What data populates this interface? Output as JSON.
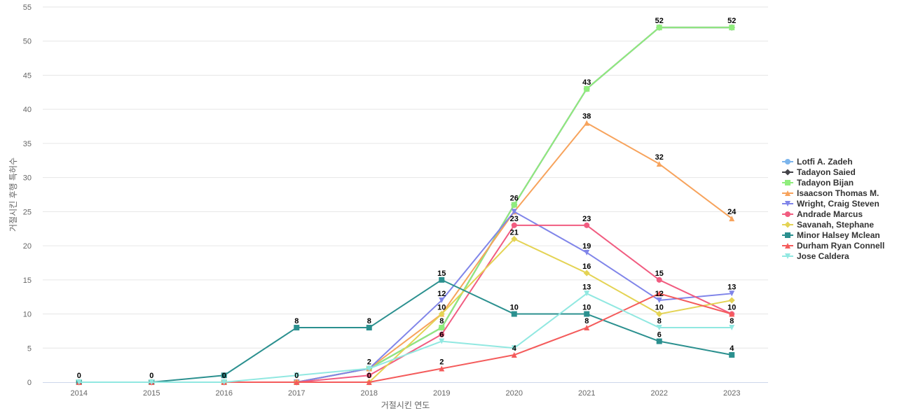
{
  "chart_data": {
    "type": "line",
    "title": "",
    "xlabel": "거절시킨 연도",
    "ylabel": "거절시킨 후행 특허수",
    "x": [
      "2014",
      "2015",
      "2016",
      "2017",
      "2018",
      "2019",
      "2020",
      "2021",
      "2022",
      "2023"
    ],
    "ylim": [
      0,
      55
    ],
    "yticks": [
      0,
      5,
      10,
      15,
      20,
      25,
      30,
      35,
      40,
      45,
      50,
      55
    ],
    "grid": "horizontal",
    "legend_position": "right",
    "series": [
      {
        "name": "Lotfi A. Zadeh",
        "color": "#7cb5ec",
        "marker": "circle",
        "values": [
          0,
          0,
          0,
          0,
          2,
          8,
          26,
          43,
          52,
          52
        ]
      },
      {
        "name": "Tadayon Saied",
        "color": "#434348",
        "marker": "diamond",
        "values": [
          0,
          0,
          0,
          0,
          2,
          8,
          26,
          43,
          52,
          52
        ]
      },
      {
        "name": "Tadayon Bijan",
        "color": "#90ed7d",
        "marker": "square",
        "values": [
          0,
          0,
          0,
          0,
          2,
          8,
          26,
          43,
          52,
          52
        ]
      },
      {
        "name": "Isaacson Thomas M.",
        "color": "#f7a35c",
        "marker": "triangle",
        "values": [
          0,
          0,
          0,
          0,
          2,
          10,
          25,
          38,
          32,
          24
        ]
      },
      {
        "name": "Wright, Craig Steven",
        "color": "#8085e9",
        "marker": "triangle-down",
        "values": [
          0,
          0,
          0,
          0,
          2,
          12,
          25,
          19,
          12,
          13
        ]
      },
      {
        "name": "Andrade Marcus",
        "color": "#f15c80",
        "marker": "circle",
        "values": [
          0,
          0,
          0,
          0,
          1,
          7,
          23,
          23,
          15,
          10
        ]
      },
      {
        "name": "Savanah, Stephane",
        "color": "#e4d354",
        "marker": "diamond",
        "values": [
          0,
          0,
          0,
          0,
          0,
          10,
          21,
          16,
          10,
          12
        ]
      },
      {
        "name": "Minor Halsey Mclean",
        "color": "#2b908f",
        "marker": "square",
        "values": [
          0,
          0,
          1,
          8,
          8,
          15,
          10,
          10,
          6,
          4
        ]
      },
      {
        "name": "Durham Ryan Connell",
        "color": "#f45b5b",
        "marker": "triangle",
        "values": [
          0,
          0,
          0,
          0,
          0,
          2,
          4,
          8,
          13,
          10
        ]
      },
      {
        "name": "Jose Caldera",
        "color": "#91e8e1",
        "marker": "triangle-down",
        "values": [
          0,
          0,
          0,
          1,
          2,
          6,
          5,
          13,
          8,
          8
        ]
      }
    ],
    "data_labels": [
      {
        "x": "2014",
        "y": 0,
        "text": "0"
      },
      {
        "x": "2015",
        "y": 0,
        "text": "0"
      },
      {
        "x": "2016",
        "y": 0,
        "text": "0"
      },
      {
        "x": "2017",
        "y": 8,
        "text": "8"
      },
      {
        "x": "2017",
        "y": 0,
        "text": "0"
      },
      {
        "x": "2018",
        "y": 8,
        "text": "8"
      },
      {
        "x": "2018",
        "y": 2,
        "text": "2"
      },
      {
        "x": "2018",
        "y": 0,
        "text": "0"
      },
      {
        "x": "2019",
        "y": 15,
        "text": "15"
      },
      {
        "x": "2019",
        "y": 12,
        "text": "12"
      },
      {
        "x": "2019",
        "y": 10,
        "text": "10"
      },
      {
        "x": "2019",
        "y": 8,
        "text": "8"
      },
      {
        "x": "2019",
        "y": 6,
        "text": "6"
      },
      {
        "x": "2019",
        "y": 2,
        "text": "2"
      },
      {
        "x": "2020",
        "y": 26,
        "text": "26"
      },
      {
        "x": "2020",
        "y": 23,
        "text": "23"
      },
      {
        "x": "2020",
        "y": 21,
        "text": "21"
      },
      {
        "x": "2020",
        "y": 10,
        "text": "10"
      },
      {
        "x": "2020",
        "y": 4,
        "text": "4"
      },
      {
        "x": "2021",
        "y": 43,
        "text": "43"
      },
      {
        "x": "2021",
        "y": 38,
        "text": "38"
      },
      {
        "x": "2021",
        "y": 23,
        "text": "23"
      },
      {
        "x": "2021",
        "y": 19,
        "text": "19"
      },
      {
        "x": "2021",
        "y": 16,
        "text": "16"
      },
      {
        "x": "2021",
        "y": 13,
        "text": "13"
      },
      {
        "x": "2021",
        "y": 10,
        "text": "10"
      },
      {
        "x": "2021",
        "y": 8,
        "text": "8"
      },
      {
        "x": "2022",
        "y": 52,
        "text": "52"
      },
      {
        "x": "2022",
        "y": 32,
        "text": "32"
      },
      {
        "x": "2022",
        "y": 15,
        "text": "15"
      },
      {
        "x": "2022",
        "y": 12,
        "text": "12"
      },
      {
        "x": "2022",
        "y": 10,
        "text": "10"
      },
      {
        "x": "2022",
        "y": 8,
        "text": "8"
      },
      {
        "x": "2022",
        "y": 6,
        "text": "6"
      },
      {
        "x": "2023",
        "y": 52,
        "text": "52"
      },
      {
        "x": "2023",
        "y": 24,
        "text": "24"
      },
      {
        "x": "2023",
        "y": 13,
        "text": "13"
      },
      {
        "x": "2023",
        "y": 10,
        "text": "10"
      },
      {
        "x": "2023",
        "y": 8,
        "text": "8"
      },
      {
        "x": "2023",
        "y": 4,
        "text": "4"
      }
    ]
  }
}
